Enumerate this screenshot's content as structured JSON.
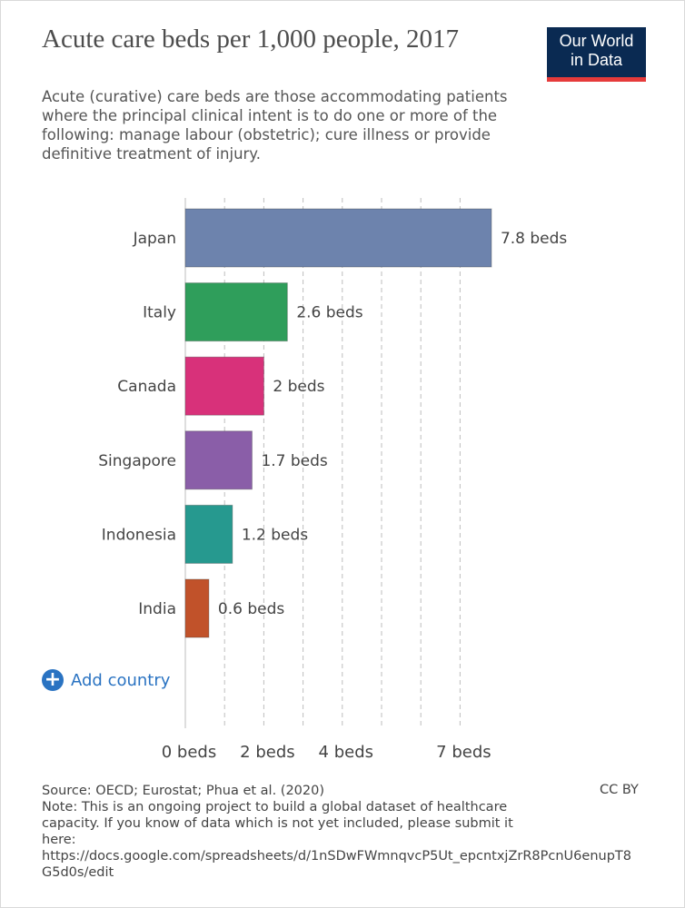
{
  "header": {
    "title": "Acute care beds per 1,000 people, 2017",
    "subtitle": "Acute (curative) care beds are those accommodating patients where the principal clinical intent is to do one or more of the following: manage labour (obstetric); cure illness or provide definitive treatment of injury.",
    "logo_line1": "Our World",
    "logo_line2": "in Data"
  },
  "add_country_label": "Add country",
  "footer": {
    "source": "Source: OECD; Eurostat; Phua et al. (2020)",
    "note": "Note: This is an ongoing project to build a global dataset of healthcare capacity. If you know of data which is not yet included, please submit it here:",
    "link": "https://docs.google.com/spreadsheets/d/1nSDwFWmnqvcP5Ut_epcntxjZrR8PcnU6enupT8G5d0s/edit",
    "license": "CC BY"
  },
  "chart_data": {
    "type": "bar",
    "orientation": "horizontal",
    "categories": [
      "Japan",
      "Italy",
      "Canada",
      "Singapore",
      "Indonesia",
      "India"
    ],
    "values": [
      7.8,
      2.6,
      2,
      1.7,
      1.2,
      0.6
    ],
    "value_labels": [
      "7.8 beds",
      "2.6 beds",
      "2 beds",
      "1.7 beds",
      "1.2 beds",
      "0.6 beds"
    ],
    "colors": [
      "#6d83ad",
      "#2f9e5b",
      "#d8317a",
      "#8a5ea8",
      "#26998f",
      "#c1522a"
    ],
    "x_ticks": [
      0,
      2,
      4,
      7
    ],
    "x_tick_labels": [
      "0 beds",
      "2 beds",
      "4 beds",
      "7 beds"
    ],
    "gridlines_at": [
      0,
      1,
      2,
      3,
      4,
      5,
      6,
      7
    ],
    "xlim": [
      0,
      7.8
    ],
    "grid": true
  }
}
